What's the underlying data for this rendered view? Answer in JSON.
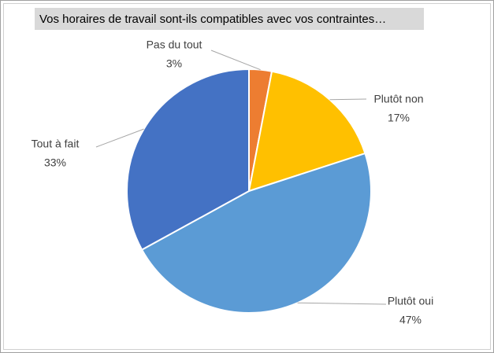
{
  "chart_data": {
    "type": "pie",
    "title": "Vos horaires de travail sont-ils compatibles avec vos contraintes…",
    "categories": [
      "Pas du tout",
      "Plutôt non",
      "Plutôt oui",
      "Tout à fait"
    ],
    "values": [
      3,
      17,
      47,
      33
    ],
    "value_labels": [
      "3%",
      "17%",
      "47%",
      "33%"
    ],
    "colors": [
      "#ed7d31",
      "#ffc000",
      "#5b9bd5",
      "#4472c4"
    ]
  }
}
